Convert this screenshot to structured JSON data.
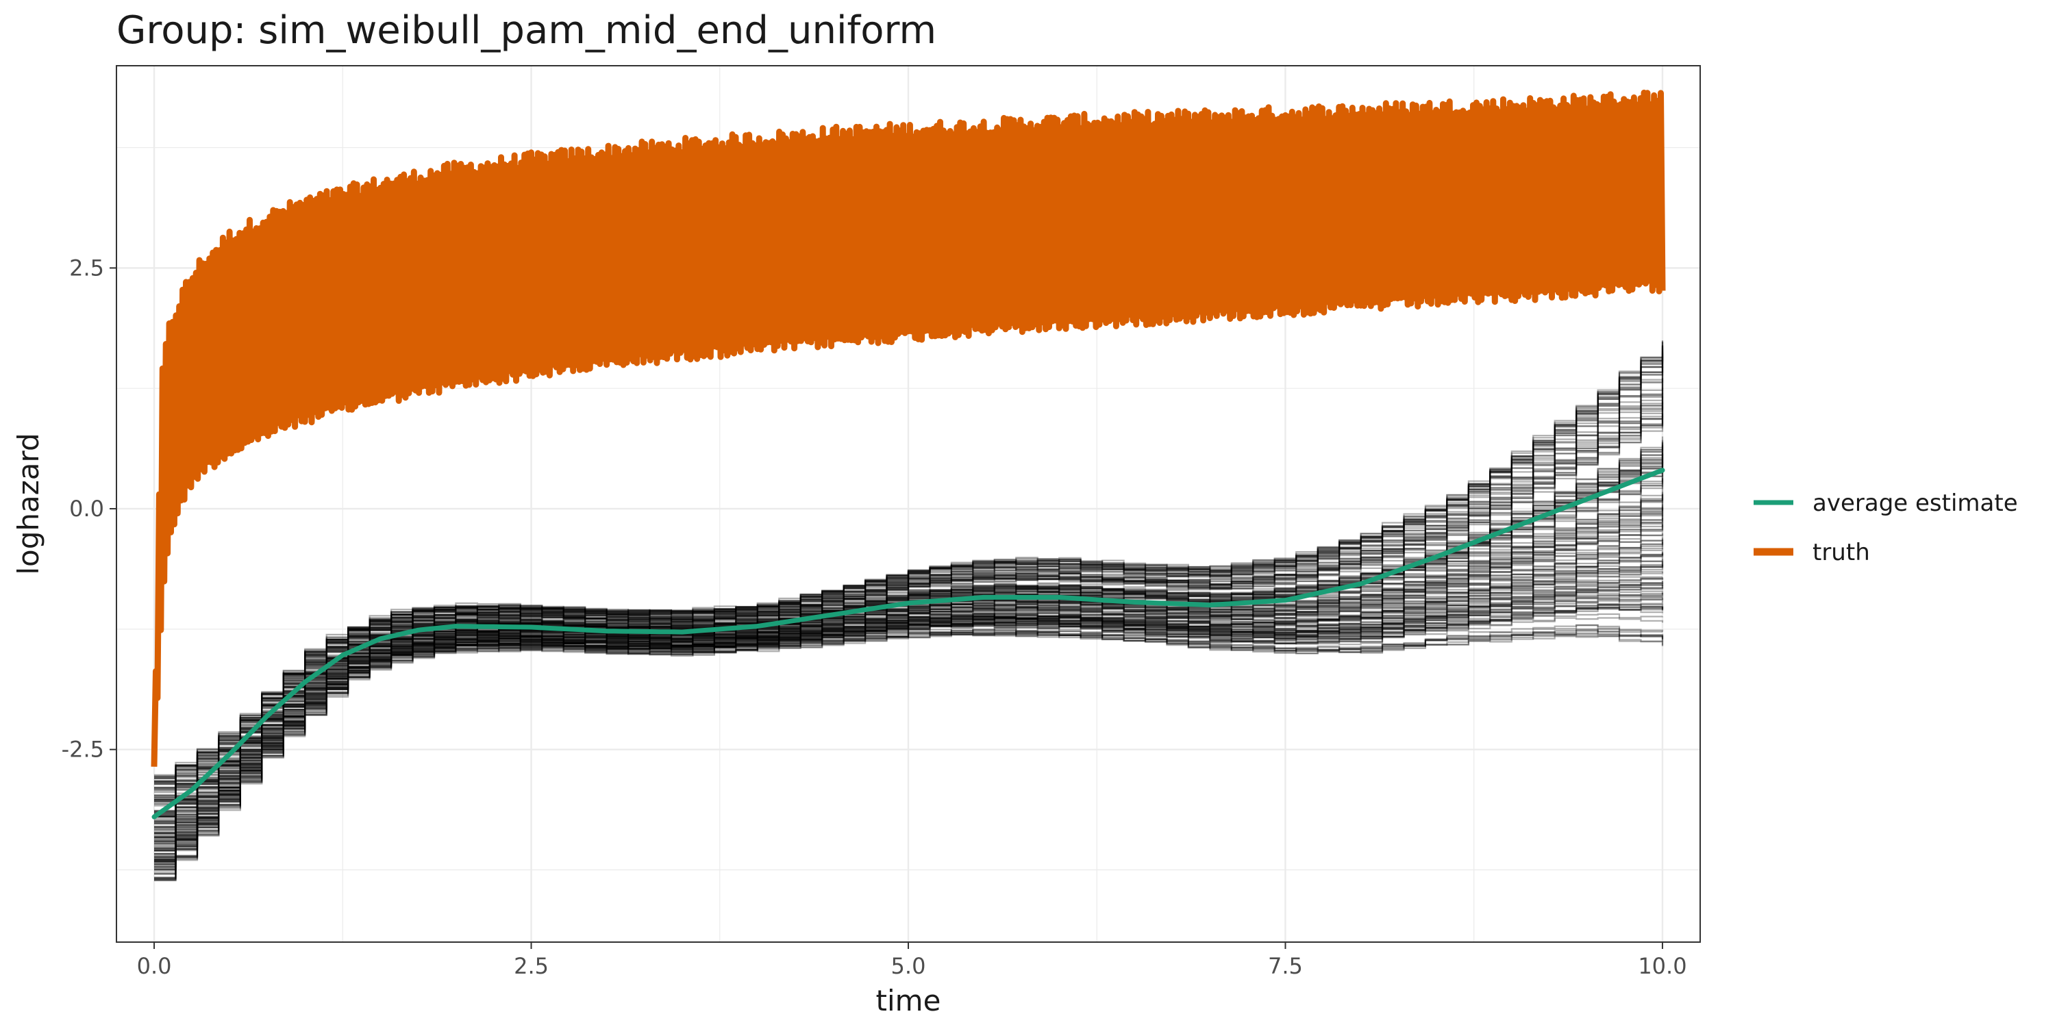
{
  "chart_data": {
    "type": "line",
    "title": "Group: sim_weibull_pam_mid_end_uniform",
    "xlabel": "time",
    "ylabel": "loghazard",
    "xlim": [
      -0.25,
      10.25
    ],
    "ylim": [
      -4.5,
      4.6
    ],
    "x_ticks": [
      0.0,
      2.5,
      5.0,
      7.5,
      10.0
    ],
    "x_tick_labels": [
      "0.0",
      "2.5",
      "5.0",
      "7.5",
      "10.0"
    ],
    "y_ticks": [
      -2.5,
      0.0,
      2.5
    ],
    "y_tick_labels": [
      "-2.5",
      "0.0",
      "2.5"
    ],
    "grid": true,
    "legend_position": "right",
    "series": [
      {
        "name": "average estimate",
        "color": "#1B9E77",
        "x": [
          0,
          0.25,
          0.5,
          0.75,
          1.0,
          1.25,
          1.5,
          1.75,
          2.0,
          2.5,
          3.0,
          3.5,
          4.0,
          4.5,
          5.0,
          5.5,
          6.0,
          6.5,
          7.0,
          7.5,
          8.0,
          8.5,
          9.0,
          9.5,
          10.0
        ],
        "y": [
          -3.2,
          -2.92,
          -2.55,
          -2.15,
          -1.8,
          -1.52,
          -1.35,
          -1.26,
          -1.22,
          -1.23,
          -1.27,
          -1.28,
          -1.22,
          -1.1,
          -0.98,
          -0.92,
          -0.92,
          -0.97,
          -1.0,
          -0.95,
          -0.78,
          -0.5,
          -0.2,
          0.1,
          0.4
        ]
      },
      {
        "name": "truth",
        "color": "#D95F02",
        "x": [
          0,
          0.05,
          0.1,
          0.2,
          0.3,
          0.5,
          0.75,
          1.0,
          1.5,
          2.0,
          2.5,
          3.0,
          3.5,
          4.0,
          4.5,
          5.0,
          5.5,
          6.0,
          6.5,
          7.0,
          7.5,
          8.0,
          8.5,
          9.0,
          9.5,
          10.0
        ],
        "upper": [
          -2.6,
          1.3,
          1.8,
          2.2,
          2.45,
          2.75,
          2.95,
          3.1,
          3.3,
          3.45,
          3.55,
          3.63,
          3.7,
          3.76,
          3.82,
          3.86,
          3.9,
          3.94,
          3.97,
          4.0,
          4.03,
          4.06,
          4.09,
          4.12,
          4.15,
          4.2
        ],
        "lower": [
          -2.6,
          -1.0,
          -0.2,
          0.2,
          0.45,
          0.65,
          0.85,
          1.0,
          1.2,
          1.35,
          1.47,
          1.57,
          1.66,
          1.73,
          1.8,
          1.86,
          1.92,
          1.97,
          2.02,
          2.07,
          2.12,
          2.17,
          2.22,
          2.27,
          2.32,
          2.38
        ]
      }
    ],
    "replicate_band": {
      "color": "#000000",
      "x": [
        0,
        0.25,
        0.5,
        0.75,
        1.0,
        1.25,
        1.5,
        1.75,
        2.0,
        2.5,
        3.0,
        3.5,
        4.0,
        4.5,
        5.0,
        5.5,
        6.0,
        6.5,
        7.0,
        7.5,
        8.0,
        8.5,
        9.0,
        9.5,
        10.0
      ],
      "upper": [
        -2.85,
        -2.6,
        -2.3,
        -1.85,
        -1.45,
        -1.22,
        -1.08,
        -1.02,
        -1.0,
        -1.0,
        -1.05,
        -1.06,
        -1.0,
        -0.82,
        -0.62,
        -0.52,
        -0.52,
        -0.58,
        -0.62,
        -0.5,
        -0.3,
        -0.02,
        0.5,
        1.1,
        1.7
      ],
      "lower": [
        -4.0,
        -3.55,
        -3.05,
        -2.55,
        -2.15,
        -1.8,
        -1.62,
        -1.55,
        -1.5,
        -1.48,
        -1.52,
        -1.54,
        -1.48,
        -1.42,
        -1.34,
        -1.33,
        -1.35,
        -1.4,
        -1.5,
        -1.55,
        -1.6,
        -1.58,
        -1.55,
        -1.55,
        -1.7
      ]
    }
  }
}
